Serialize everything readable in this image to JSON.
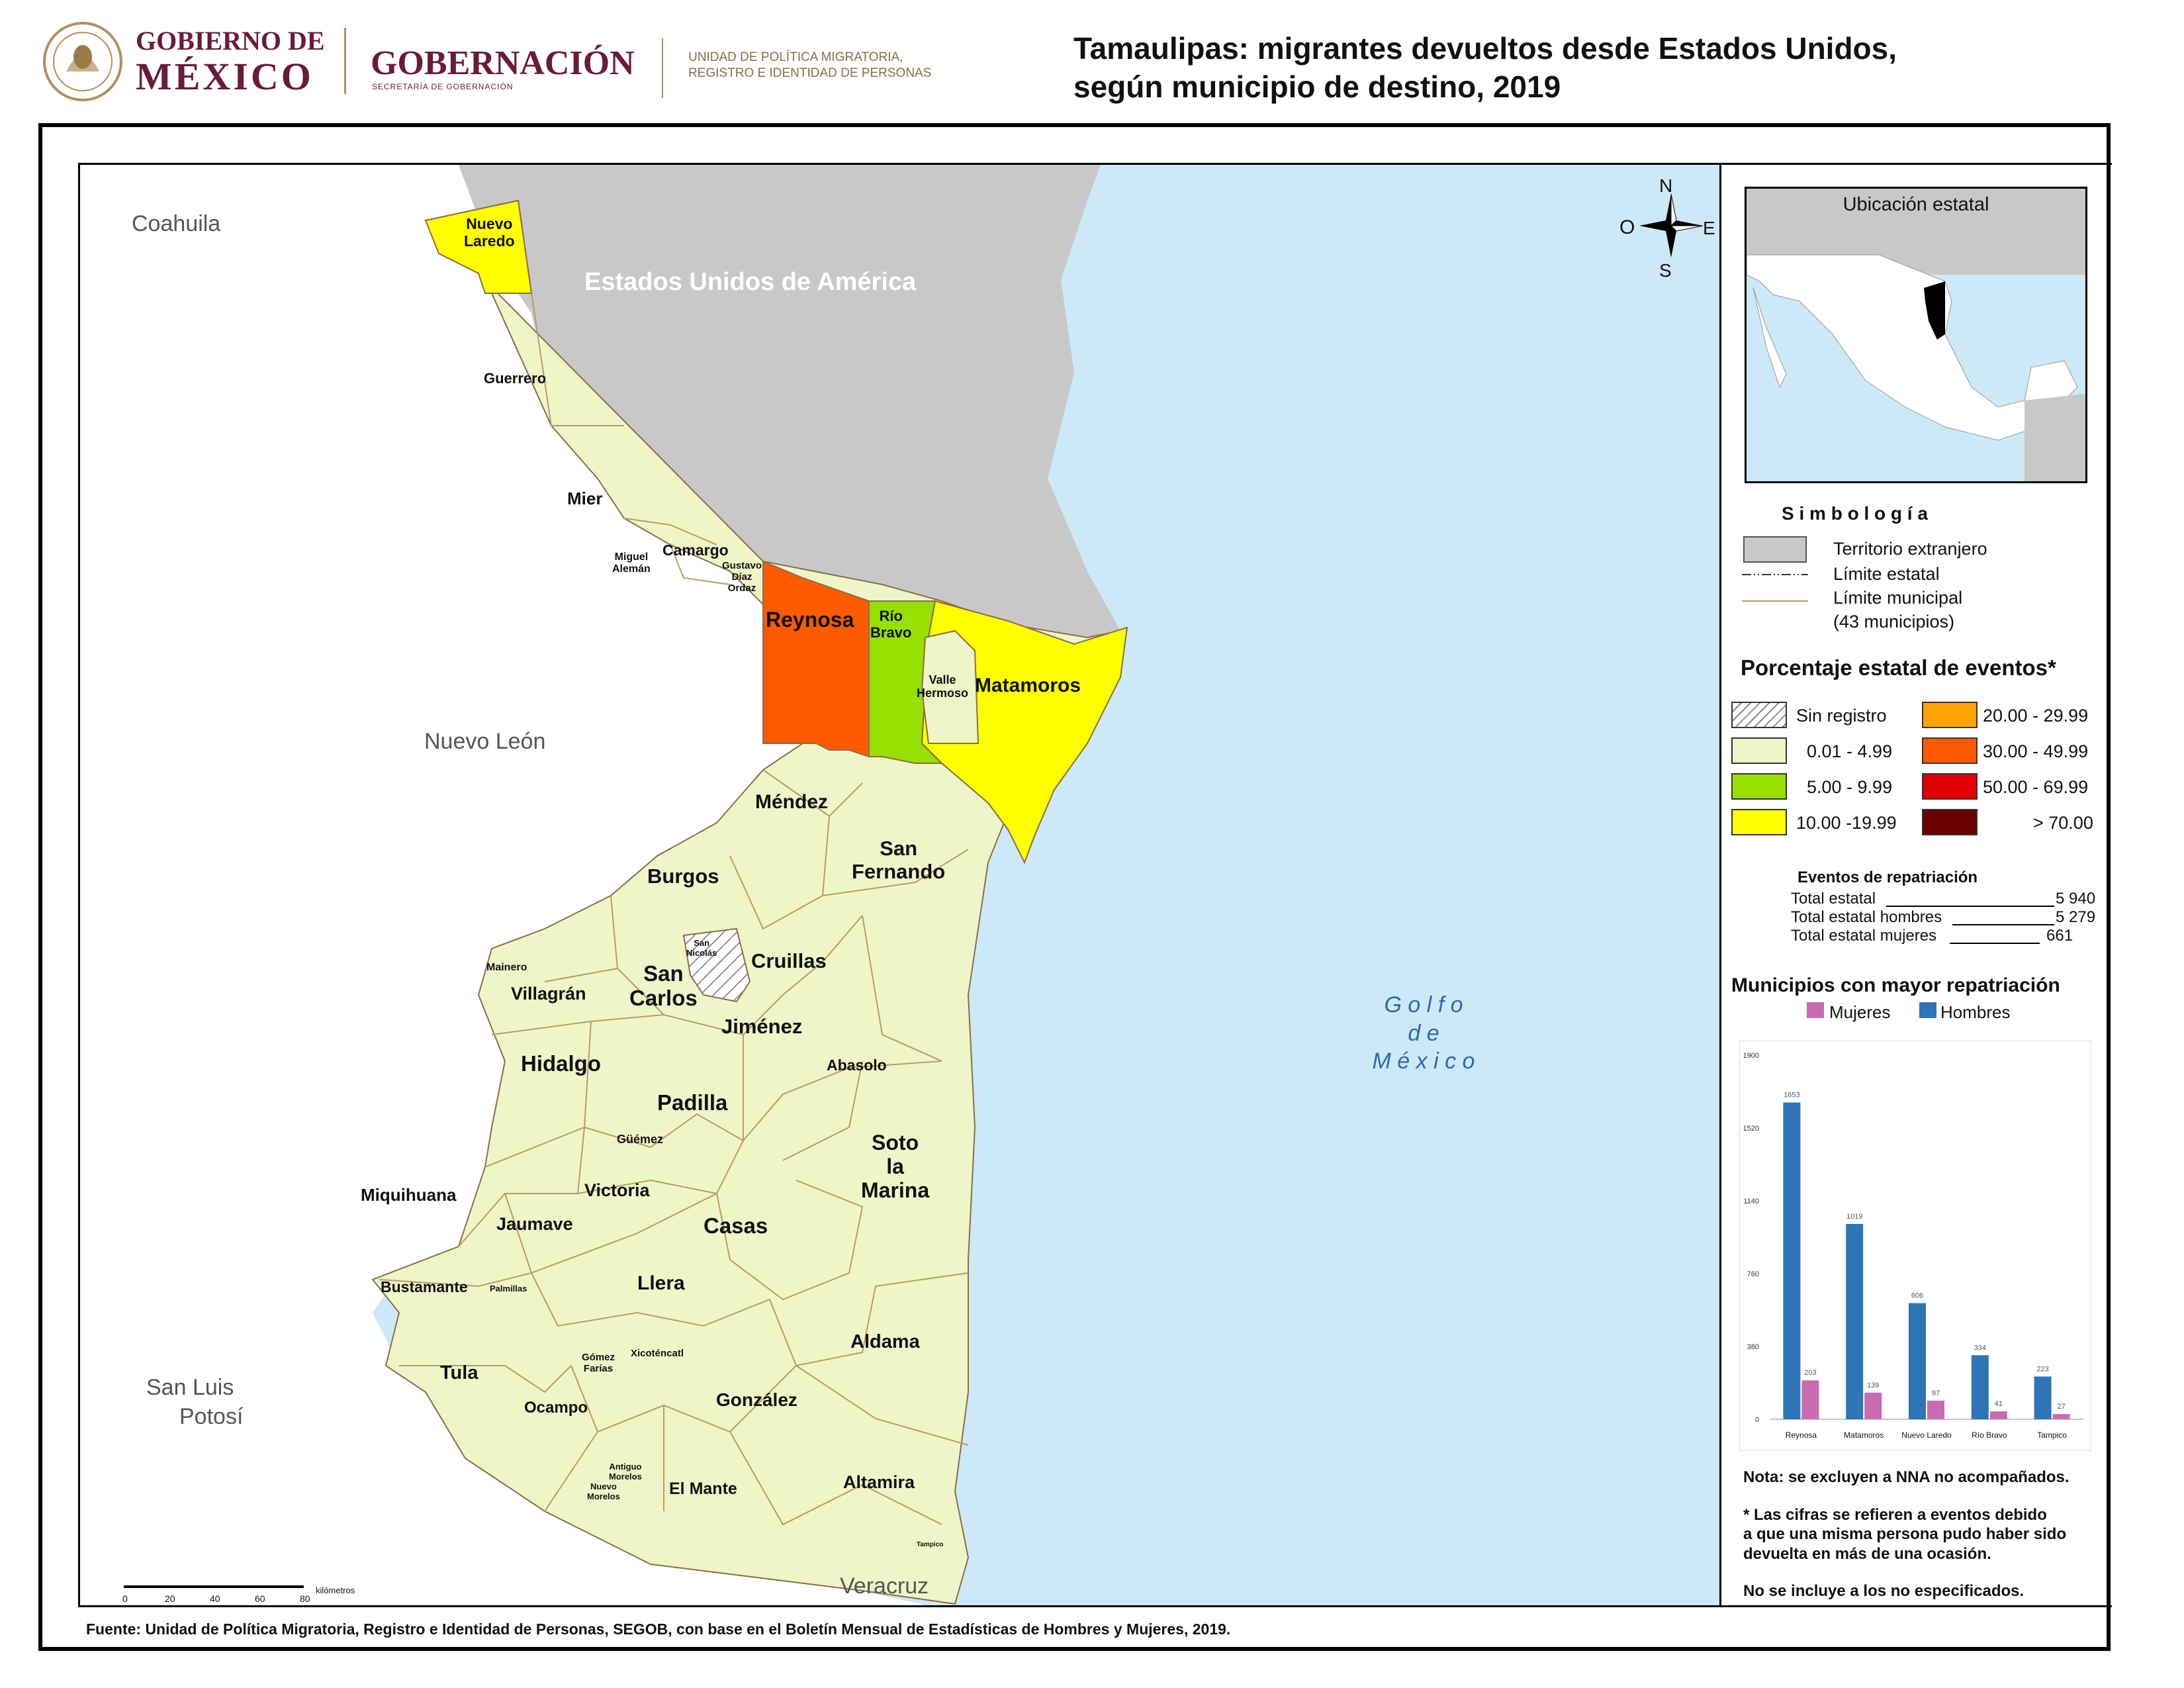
{
  "header": {
    "gob_line1": "GOBIERNO DE",
    "gob_line2": "MÉXICO",
    "gobernacion": "GOBERNACIÓN",
    "secretaria": "SECRETARÍA DE GOBERNACIÓN",
    "unidad_line1": "UNIDAD DE POLÍTICA MIGRATORIA,",
    "unidad_line2": "REGISTRO E IDENTIDAD DE PERSONAS",
    "title_line1": "Tamaulipas: migrantes devueltos desde Estados Unidos,",
    "title_line2": "según municipio de destino, 2019"
  },
  "map": {
    "neighbors": {
      "coahuila": "Coahuila",
      "nuevo_leon": "Nuevo León",
      "slp_line1": "San Luis",
      "slp_line2": "Potosí",
      "veracruz": "Veracruz",
      "usa": "Estados Unidos de América"
    },
    "gulf": [
      "G o l f o",
      "d e",
      "M é x i c o"
    ],
    "compass": {
      "n": "N",
      "s": "S",
      "e": "E",
      "o": "O"
    },
    "scale": {
      "ticks": [
        "0",
        "20",
        "40",
        "60",
        "80"
      ],
      "unit": "kilómetros"
    },
    "municipalities": {
      "nuevo_laredo": [
        "Nuevo",
        "Laredo"
      ],
      "guerrero": "Guerrero",
      "mier": "Mier",
      "miguel_aleman": [
        "Miguel",
        "Alemán"
      ],
      "camargo": "Camargo",
      "gustavo_diaz_ordaz": [
        "Gustavo",
        "Díaz",
        "Ordaz"
      ],
      "reynosa": "Reynosa",
      "rio_bravo": [
        "Río",
        "Bravo"
      ],
      "valle_hermoso": [
        "Valle",
        "Hermoso"
      ],
      "matamoros": "Matamoros",
      "mendez": "Méndez",
      "burgos": "Burgos",
      "san_fernando": [
        "San",
        "Fernando"
      ],
      "san_nicolas": [
        "San",
        "Nicolás"
      ],
      "cruillas": "Cruillas",
      "mainero": "Mainero",
      "villagran": "Villagrán",
      "san_carlos": [
        "San",
        "Carlos"
      ],
      "jimenez": "Jiménez",
      "hidalgo": "Hidalgo",
      "abasolo": "Abasolo",
      "padilla": "Padilla",
      "guemez": "Güémez",
      "soto_la_marina": [
        "Soto",
        "la",
        "Marina"
      ],
      "victoria": "Victoria",
      "miquihuana": "Miquihuana",
      "jaumave": "Jaumave",
      "casas": "Casas",
      "bustamante": "Bustamante",
      "palmillas": "Palmillas",
      "llera": "Llera",
      "aldama": "Aldama",
      "gomez_farias": [
        "Gómez",
        "Farías"
      ],
      "xicotencatl": "Xicoténcatl",
      "tula": "Tula",
      "ocampo": "Ocampo",
      "gonzalez": "González",
      "antiguo_morelos": [
        "Antiguo",
        "Morelos"
      ],
      "nuevo_morelos": [
        "Nuevo",
        "Morelos"
      ],
      "el_mante": "El Mante",
      "altamira": "Altamira",
      "tampico": "Tampico"
    },
    "colors": {
      "land_default": "#eef6c8",
      "us": "#c8c8c8",
      "gulf": "#cde9f7",
      "rio_bravo": "#98e000",
      "reynosa": "#ff5a00",
      "yellow": "#ffff00"
    }
  },
  "panel": {
    "locator_title": "Ubicación estatal",
    "simbologia_title": "S i m b o l o g í a",
    "sym_foreign": "Territorio extranjero",
    "sym_state_limit": "Límite estatal",
    "sym_muni_limit": "Límite municipal",
    "sym_muni_count": "(43 municipios)",
    "pct_title": "Porcentaje estatal de eventos*",
    "legend": [
      {
        "label": "Sin registro",
        "color": "hatch"
      },
      {
        "label": "0.01  - 4.99",
        "color": "#eef6c8"
      },
      {
        "label": "5.00  - 9.99",
        "color": "#98e000"
      },
      {
        "label": "10.00 -19.99",
        "color": "#ffff00"
      },
      {
        "label": "20.00 - 29.99",
        "color": "#ffa500"
      },
      {
        "label": "30.00 - 49.99",
        "color": "#ff5a00"
      },
      {
        "label": "50.00 - 69.99",
        "color": "#e00000"
      },
      {
        "label": "> 70.00",
        "color": "#6b0000"
      }
    ],
    "eventos_title": "Eventos de repatriación",
    "stats": [
      {
        "label": "Total estatal",
        "value": "5 940"
      },
      {
        "label": "Total estatal hombres",
        "value": "5 279"
      },
      {
        "label": "Total estatal mujeres",
        "value": "661"
      }
    ],
    "chart_title": "Municipios con mayor repatriación",
    "chart_legend": {
      "mujeres": "Mujeres",
      "hombres": "Hombres"
    },
    "note1": "Nota: se excluyen a NNA no acompañados.",
    "note2_lines": [
      "* Las cifras se refieren a eventos debido",
      "a que una misma persona pudo haber sido",
      "devuelta en más de una ocasión."
    ],
    "note3": "No se incluye a los no especificados."
  },
  "chart_data": {
    "type": "bar",
    "categories": [
      "Reynosa",
      "Matamoros",
      "Nuevo Laredo",
      "Río Bravo",
      "Tampico"
    ],
    "series": [
      {
        "name": "Hombres",
        "values": [
          1653,
          1019,
          606,
          334,
          223
        ],
        "color": "#2e75b6"
      },
      {
        "name": "Mujeres",
        "values": [
          203,
          139,
          97,
          41,
          27
        ],
        "color": "#c86bb1"
      }
    ],
    "yticks": [
      "0",
      "380",
      "760",
      "1140",
      "1520",
      "1900"
    ],
    "ylim": [
      0,
      1900
    ]
  },
  "footer": {
    "source": "Fuente: Unidad de Política Migratoria, Registro e Identidad de Personas, SEGOB, con base en el Boletín Mensual de Estadísticas de Hombres y Mujeres, 2019."
  }
}
